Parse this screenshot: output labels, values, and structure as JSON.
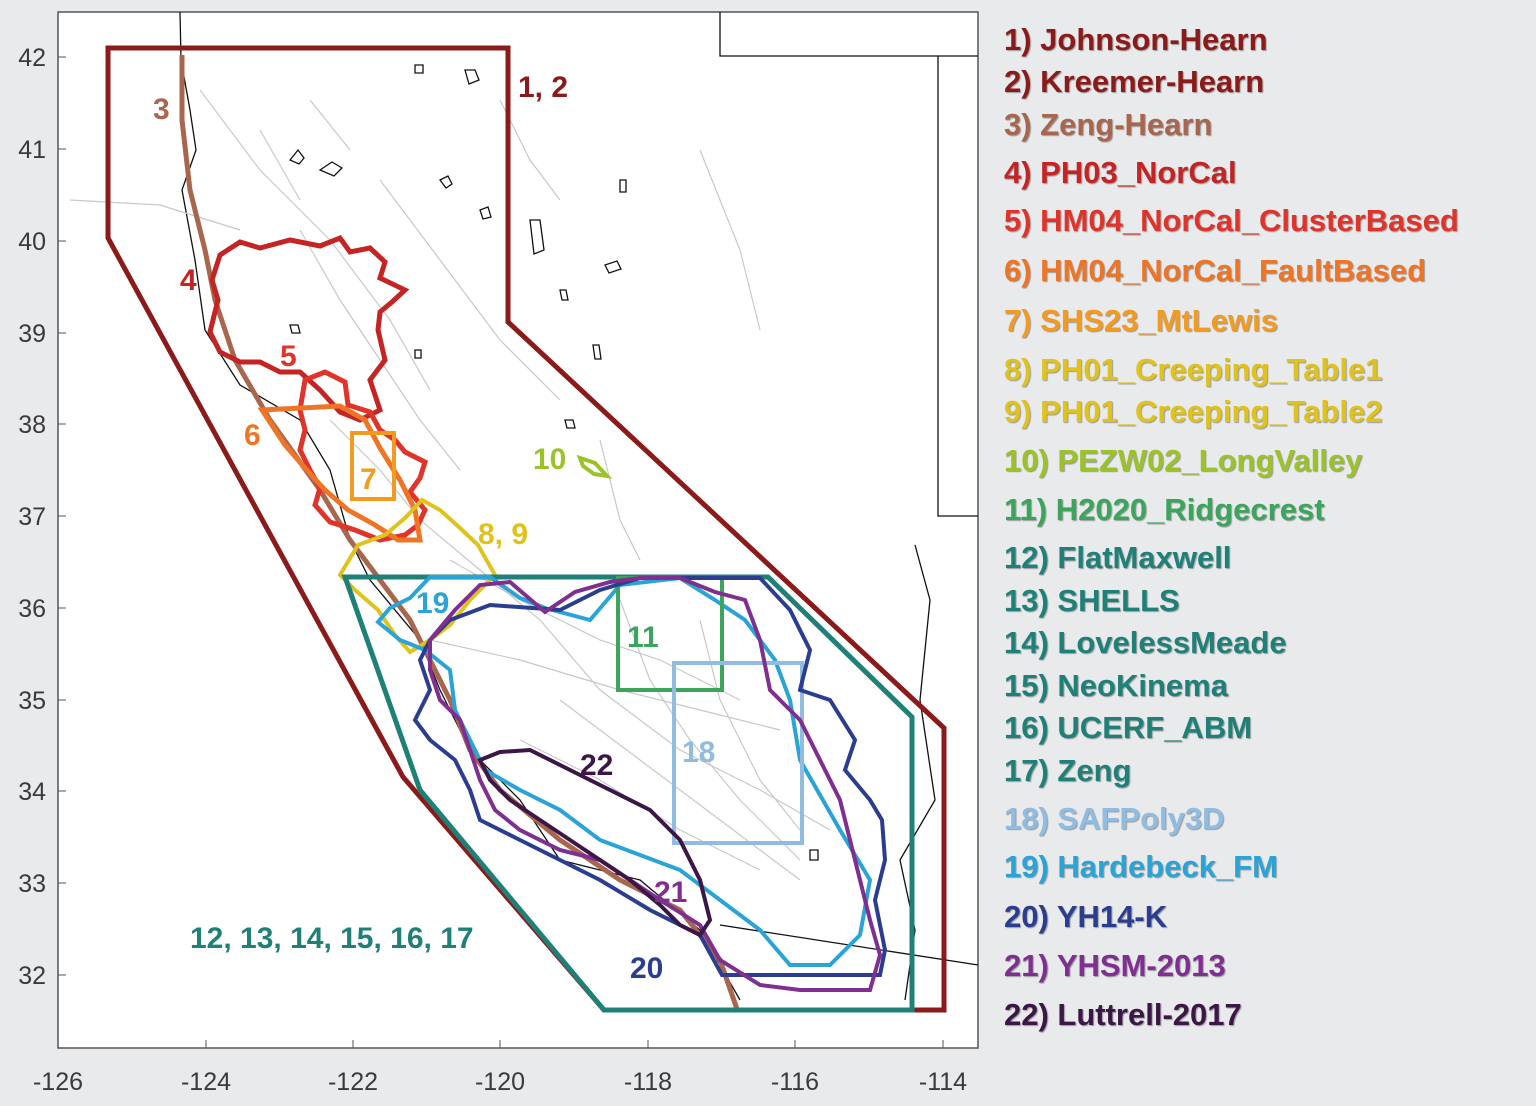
{
  "axes": {
    "x_ticks": [
      "-126",
      "-124",
      "-122",
      "-120",
      "-118",
      "-116",
      "-114"
    ],
    "y_ticks": [
      "42",
      "41",
      "40",
      "39",
      "38",
      "37",
      "36",
      "35",
      "34",
      "33",
      "32"
    ]
  },
  "map_labels": [
    {
      "text": "1, 2",
      "color": "#8b1a1a"
    },
    {
      "text": "3",
      "color": "#a8664f"
    },
    {
      "text": "4",
      "color": "#c42424"
    },
    {
      "text": "5",
      "color": "#e0332a"
    },
    {
      "text": "6",
      "color": "#ee7426"
    },
    {
      "text": "7",
      "color": "#f39a20"
    },
    {
      "text": "8, 9",
      "color": "#dfc21c"
    },
    {
      "text": "10",
      "color": "#9cc22a"
    },
    {
      "text": "11",
      "color": "#3ca55c"
    },
    {
      "text": "12, 13, 14, 15, 16, 17",
      "color": "#1f8077"
    },
    {
      "text": "18",
      "color": "#8fbce0"
    },
    {
      "text": "19",
      "color": "#2aa3d6"
    },
    {
      "text": "20",
      "color": "#2b3d8f"
    },
    {
      "text": "21",
      "color": "#7e2f8f"
    },
    {
      "text": "22",
      "color": "#3b1647"
    }
  ],
  "legend": [
    {
      "text": "1) Johnson-Hearn",
      "color": "#8b1a1a"
    },
    {
      "text": "2) Kreemer-Hearn",
      "color": "#8b1a1a"
    },
    {
      "text": "3) Zeng-Hearn",
      "color": "#a8664f"
    },
    {
      "text": "4) PH03_NorCal",
      "color": "#c42424"
    },
    {
      "text": "5) HM04_NorCal_ClusterBased",
      "color": "#e0332a"
    },
    {
      "text": "6) HM04_NorCal_FaultBased",
      "color": "#ee7426"
    },
    {
      "text": "7) SHS23_MtLewis",
      "color": "#f39a20"
    },
    {
      "text": "8) PH01_Creeping_Table1",
      "color": "#dfc21c"
    },
    {
      "text": "9) PH01_Creeping_Table2",
      "color": "#dfc21c"
    },
    {
      "text": "10) PEZW02_LongValley",
      "color": "#9cc22a"
    },
    {
      "text": "11) H2020_Ridgecrest",
      "color": "#3ca55c"
    },
    {
      "text": "12) FlatMaxwell",
      "color": "#1f8077"
    },
    {
      "text": "13) SHELLS",
      "color": "#1f8077"
    },
    {
      "text": "14) LovelessMeade",
      "color": "#1f8077"
    },
    {
      "text": "15) NeoKinema",
      "color": "#1f8077"
    },
    {
      "text": "16) UCERF_ABM",
      "color": "#1f8077"
    },
    {
      "text": "17) Zeng",
      "color": "#1f8077"
    },
    {
      "text": "18) SAFPoly3D",
      "color": "#8fbce0"
    },
    {
      "text": "19) Hardebeck_FM",
      "color": "#2aa3d6"
    },
    {
      "text": "20) YH14-K",
      "color": "#2b3d8f"
    },
    {
      "text": "21) YHSM-2013",
      "color": "#7e2f8f"
    },
    {
      "text": "22) Luttrell-2017",
      "color": "#3b1647"
    }
  ]
}
